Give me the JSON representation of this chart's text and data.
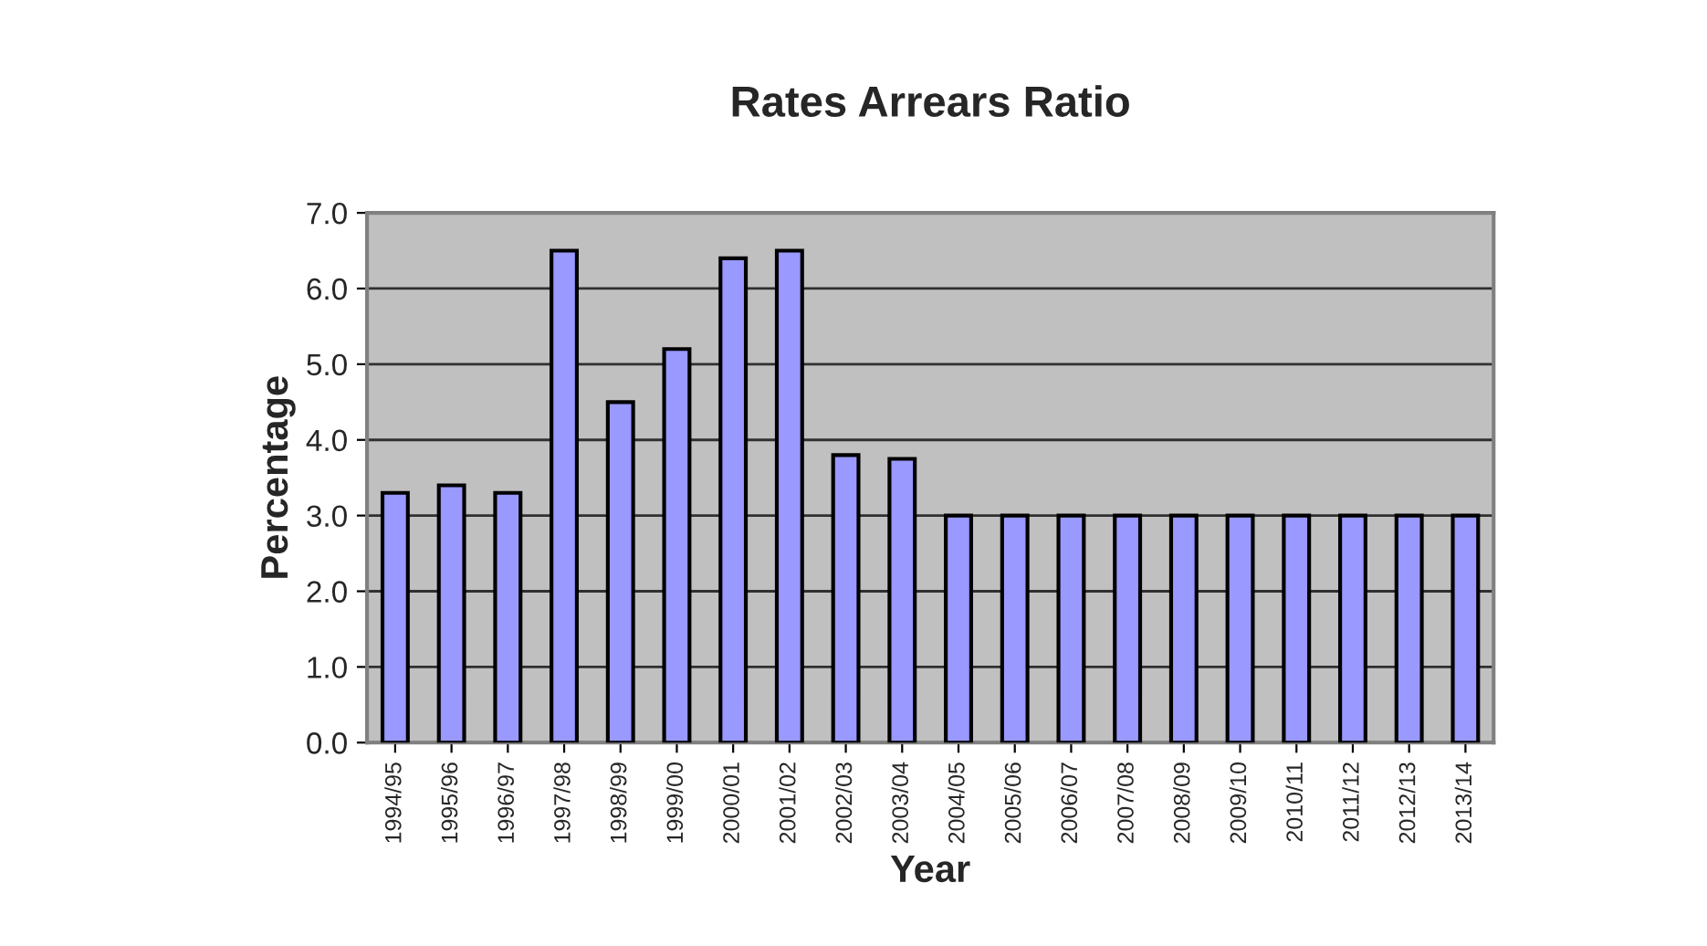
{
  "chart_data": {
    "type": "bar",
    "title": "Rates Arrears Ratio",
    "xlabel": "Year",
    "ylabel": "Percentage",
    "categories": [
      "1994/95",
      "1995/96",
      "1996/97",
      "1997/98",
      "1998/99",
      "1999/00",
      "2000/01",
      "2001/02",
      "2002/03",
      "2003/04",
      "2004/05",
      "2005/06",
      "2006/07",
      "2007/08",
      "2008/09",
      "2009/10",
      "2010/11",
      "2011/12",
      "2012/13",
      "2013/14"
    ],
    "values": [
      3.3,
      3.4,
      3.3,
      6.5,
      4.5,
      5.2,
      6.4,
      6.5,
      3.8,
      3.75,
      3.0,
      3.0,
      3.0,
      3.0,
      3.0,
      3.0,
      3.0,
      3.0,
      3.0,
      3.0
    ],
    "color": "#9999ff",
    "ylim": [
      0,
      7
    ],
    "yticks": [
      {
        "value": 0,
        "label": "0.0"
      },
      {
        "value": 1,
        "label": "1.0"
      },
      {
        "value": 2,
        "label": "2.0"
      },
      {
        "value": 3,
        "label": "3.0"
      },
      {
        "value": 4,
        "label": "4.0"
      },
      {
        "value": 5,
        "label": "5.0"
      },
      {
        "value": 6,
        "label": "6.0"
      },
      {
        "value": 7,
        "label": "7.0"
      }
    ],
    "grid": "y",
    "legend": false
  }
}
